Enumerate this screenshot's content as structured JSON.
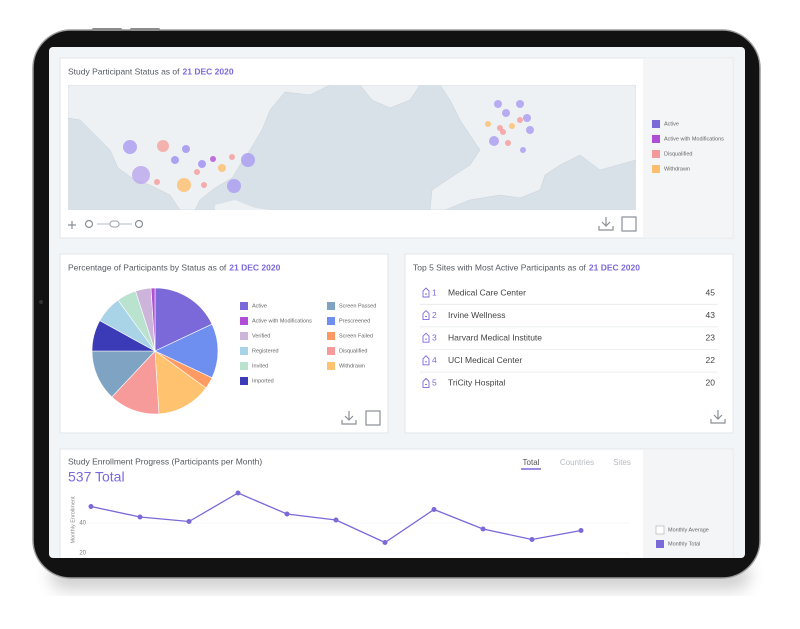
{
  "map_panel": {
    "title": "Study Participant Status as of",
    "date": "21 DEC 2020",
    "legend": [
      {
        "label": "Active",
        "color": "#7b68d9"
      },
      {
        "label": "Active with Modifications",
        "color": "#b04fd6"
      },
      {
        "label": "Disqualified",
        "color": "#f59a9a"
      },
      {
        "label": "Withdrawn",
        "color": "#ffbe6b"
      }
    ]
  },
  "sites_panel": {
    "title": "Top 5 Sites with Most Active Participants as of",
    "date": "21 DEC 2020",
    "rows": [
      {
        "rank": 1,
        "name": "Medical Care Center",
        "value": 45
      },
      {
        "rank": 2,
        "name": "Irvine Wellness",
        "value": 43
      },
      {
        "rank": 3,
        "name": "Harvard Medical Institute",
        "value": 23
      },
      {
        "rank": 4,
        "name": "UCI Medical Center",
        "value": 22
      },
      {
        "rank": 5,
        "name": "TriCity Hospital",
        "value": 20
      }
    ]
  },
  "chart_data": [
    {
      "type": "pie",
      "title": "Percentage of Participants by Status as of",
      "date": "21 DEC 2020",
      "categories": [
        "Active",
        "Prescreened",
        "Screen Failed",
        "Withdrawn",
        "Disqualified",
        "Screen Passed",
        "Imported",
        "Registered",
        "Invited",
        "Verified",
        "Active with Modifications"
      ],
      "values": [
        18,
        14,
        3,
        14,
        13,
        13,
        8,
        7,
        5,
        4,
        1
      ],
      "colors": [
        "#7b68d9",
        "#6f8ff0",
        "#ff9a62",
        "#ffc26e",
        "#f79a9a",
        "#7fa3c2",
        "#3b3bb8",
        "#a9d3e6",
        "#b9e2cf",
        "#cdb4da",
        "#b04fd6"
      ]
    },
    {
      "type": "line",
      "title": "Study Enrollment Progress (Participants per Month)",
      "total": "537 Total",
      "tabs": [
        "Total",
        "Countries",
        "Sites"
      ],
      "y_label": "Monthly Enrollment",
      "reference": {
        "name": "Monthly Average"
      },
      "series": [
        {
          "name": "Monthly Total",
          "color": "#7b68d9",
          "values": [
            51,
            44,
            41,
            60,
            46,
            42,
            27,
            49,
            36,
            29,
            35
          ]
        }
      ],
      "ylim": [
        20,
        70
      ],
      "yticks": [
        20,
        40
      ]
    }
  ]
}
